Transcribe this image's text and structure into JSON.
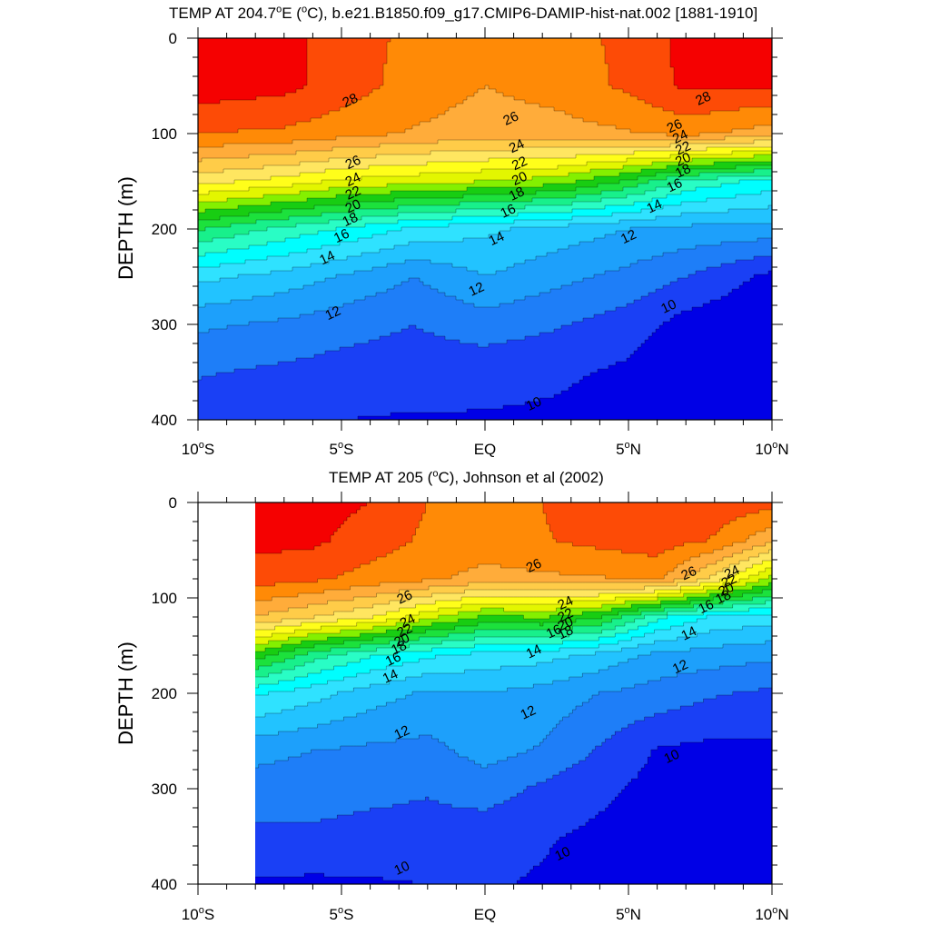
{
  "chart_data": [
    {
      "type": "contour",
      "title_parts": [
        "TEMP AT 204.7",
        "o",
        "E (",
        "o",
        "C), b.e21.B1850.f09_g17.CMIP6-DAMIP-hist-nat.002 [1881-1910]"
      ],
      "ylabel": "DEPTH (m)",
      "xlim": [
        -10,
        10
      ],
      "ylim": [
        0,
        400
      ],
      "y_inverted": true,
      "y_ticks": [
        0,
        100,
        200,
        300,
        400
      ],
      "y_tick_labels": [
        "0",
        "100",
        "200",
        "300",
        "400"
      ],
      "x_ticks": [
        -10,
        -5,
        0,
        5,
        10
      ],
      "x_tick_labels": [
        {
          "main": "10",
          "sup": "o",
          "tail": "S"
        },
        {
          "main": "5",
          "sup": "o",
          "tail": "S"
        },
        {
          "main": "EQ",
          "sup": "",
          "tail": ""
        },
        {
          "main": "5",
          "sup": "o",
          "tail": "N"
        },
        {
          "main": "10",
          "sup": "o",
          "tail": "N"
        }
      ],
      "data_xlim": [
        -10,
        10
      ],
      "contour_labels": [
        {
          "text": "28",
          "x": -4.7,
          "y": 65
        },
        {
          "text": "28",
          "x": 7.6,
          "y": 63
        },
        {
          "text": "26",
          "x": -4.6,
          "y": 130
        },
        {
          "text": "26",
          "x": 0.9,
          "y": 84
        },
        {
          "text": "26",
          "x": 6.6,
          "y": 92
        },
        {
          "text": "24",
          "x": -4.6,
          "y": 148
        },
        {
          "text": "24",
          "x": 1.1,
          "y": 113
        },
        {
          "text": "24",
          "x": 6.8,
          "y": 103
        },
        {
          "text": "22",
          "x": -4.6,
          "y": 162
        },
        {
          "text": "22",
          "x": 1.2,
          "y": 131
        },
        {
          "text": "22",
          "x": 6.9,
          "y": 115
        },
        {
          "text": "20",
          "x": -4.6,
          "y": 176
        },
        {
          "text": "20",
          "x": 1.2,
          "y": 147
        },
        {
          "text": "20",
          "x": 6.9,
          "y": 127
        },
        {
          "text": "18",
          "x": -4.7,
          "y": 190
        },
        {
          "text": "18",
          "x": 1.1,
          "y": 163
        },
        {
          "text": "18",
          "x": 6.9,
          "y": 139
        },
        {
          "text": "16",
          "x": -5.0,
          "y": 207
        },
        {
          "text": "16",
          "x": 0.8,
          "y": 181
        },
        {
          "text": "16",
          "x": 6.6,
          "y": 154
        },
        {
          "text": "14",
          "x": -5.5,
          "y": 230
        },
        {
          "text": "14",
          "x": 0.4,
          "y": 210
        },
        {
          "text": "14",
          "x": 5.9,
          "y": 176
        },
        {
          "text": "12",
          "x": -5.3,
          "y": 288
        },
        {
          "text": "12",
          "x": -0.3,
          "y": 263
        },
        {
          "text": "12",
          "x": 5.0,
          "y": 208
        },
        {
          "text": "10",
          "x": 6.4,
          "y": 281
        },
        {
          "text": "10",
          "x": 1.7,
          "y": 383
        }
      ],
      "fields": {
        "x_grid": [
          -10,
          -7,
          -5,
          -2.5,
          0,
          2.5,
          5,
          7,
          10
        ],
        "depth_grid": [
          0,
          50,
          100,
          150,
          200,
          250,
          300,
          350,
          400
        ],
        "temperature": [
          [
            28.6,
            28.3,
            27.6,
            26.7,
            26.0,
            26.5,
            27.3,
            28.3,
            28.3
          ],
          [
            28.6,
            28.3,
            27.5,
            26.6,
            26.0,
            26.4,
            27.2,
            28.2,
            28.1
          ],
          [
            27.0,
            26.8,
            26.4,
            25.9,
            25.5,
            25.6,
            25.9,
            26.3,
            25.5
          ],
          [
            23.4,
            22.6,
            21.8,
            21.4,
            21.0,
            20.5,
            18.8,
            16.8,
            15.6
          ],
          [
            18.1,
            16.7,
            15.9,
            14.8,
            14.2,
            13.6,
            13.0,
            12.7,
            12.6
          ],
          [
            14.3,
            13.6,
            12.9,
            12.0,
            13.0,
            12.3,
            11.7,
            11.0,
            9.7
          ],
          [
            12.2,
            11.8,
            11.4,
            11.0,
            11.5,
            11.1,
            10.5,
            9.6,
            9.1
          ],
          [
            11.1,
            10.8,
            10.6,
            10.5,
            10.4,
            10.2,
            9.8,
            9.0,
            8.6
          ],
          [
            10.4,
            10.2,
            10.0,
            9.9,
            9.9,
            9.8,
            9.5,
            8.9,
            8.5
          ]
        ]
      }
    },
    {
      "type": "contour",
      "title_parts": [
        "TEMP AT 205 (",
        "o",
        "C), Johnson et al (2002)"
      ],
      "ylabel": "DEPTH (m)",
      "xlim": [
        -10,
        10
      ],
      "ylim": [
        0,
        400
      ],
      "y_inverted": true,
      "y_ticks": [
        0,
        100,
        200,
        300,
        400
      ],
      "y_tick_labels": [
        "0",
        "100",
        "200",
        "300",
        "400"
      ],
      "x_ticks": [
        -10,
        -5,
        0,
        5,
        10
      ],
      "x_tick_labels": [
        {
          "main": "10",
          "sup": "o",
          "tail": "S"
        },
        {
          "main": "5",
          "sup": "o",
          "tail": "S"
        },
        {
          "main": "EQ",
          "sup": "",
          "tail": ""
        },
        {
          "main": "5",
          "sup": "o",
          "tail": "N"
        },
        {
          "main": "10",
          "sup": "o",
          "tail": "N"
        }
      ],
      "data_xlim": [
        -8,
        10
      ],
      "contour_labels": [
        {
          "text": "26",
          "x": -2.8,
          "y": 99
        },
        {
          "text": "26",
          "x": 1.7,
          "y": 66
        },
        {
          "text": "26",
          "x": 7.1,
          "y": 74
        },
        {
          "text": "24",
          "x": -2.7,
          "y": 124
        },
        {
          "text": "24",
          "x": 2.8,
          "y": 105
        },
        {
          "text": "24",
          "x": 8.6,
          "y": 73
        },
        {
          "text": "22",
          "x": -2.8,
          "y": 134
        },
        {
          "text": "22",
          "x": 2.8,
          "y": 118
        },
        {
          "text": "22",
          "x": 8.5,
          "y": 82
        },
        {
          "text": "20",
          "x": -2.9,
          "y": 144
        },
        {
          "text": "20",
          "x": 2.8,
          "y": 127
        },
        {
          "text": "20",
          "x": 8.4,
          "y": 91
        },
        {
          "text": "18",
          "x": -3.0,
          "y": 152
        },
        {
          "text": "18",
          "x": 2.8,
          "y": 136
        },
        {
          "text": "18",
          "x": 8.3,
          "y": 99
        },
        {
          "text": "16",
          "x": -3.2,
          "y": 164
        },
        {
          "text": "16",
          "x": 2.4,
          "y": 135
        },
        {
          "text": "16",
          "x": 7.7,
          "y": 109
        },
        {
          "text": "14",
          "x": -3.3,
          "y": 182
        },
        {
          "text": "14",
          "x": 1.7,
          "y": 156
        },
        {
          "text": "14",
          "x": 7.1,
          "y": 137
        },
        {
          "text": "12",
          "x": -2.9,
          "y": 241
        },
        {
          "text": "12",
          "x": 1.5,
          "y": 220
        },
        {
          "text": "12",
          "x": 6.8,
          "y": 172
        },
        {
          "text": "10",
          "x": -2.9,
          "y": 383
        },
        {
          "text": "10",
          "x": 2.7,
          "y": 368
        },
        {
          "text": "10",
          "x": 6.5,
          "y": 266
        }
      ],
      "fields": {
        "x_grid": [
          -8,
          -6,
          -4,
          -2,
          0,
          2,
          4,
          6,
          8,
          10
        ],
        "depth_grid": [
          0,
          40,
          80,
          120,
          160,
          200,
          260,
          300,
          350,
          400
        ],
        "temperature": [
          [
            28.4,
            28.4,
            28.0,
            27.0,
            27.0,
            27.0,
            27.9,
            27.9,
            27.6,
            27.4
          ],
          [
            28.3,
            28.2,
            27.5,
            26.8,
            26.6,
            26.9,
            27.3,
            27.5,
            26.9,
            25.2
          ],
          [
            27.5,
            27.2,
            26.6,
            26.2,
            25.6,
            25.8,
            25.9,
            26.3,
            23.6,
            20.7
          ],
          [
            25.0,
            24.0,
            23.1,
            21.3,
            19.8,
            20.1,
            19.1,
            16.3,
            14.8,
            14.5
          ],
          [
            19.6,
            17.5,
            16.1,
            15.2,
            14.6,
            14.4,
            13.7,
            12.7,
            12.5,
            12.2
          ],
          [
            15.2,
            14.4,
            13.5,
            12.8,
            13.0,
            12.6,
            12.0,
            11.6,
            11.1,
            10.8
          ],
          [
            12.3,
            12.0,
            11.8,
            11.7,
            12.4,
            11.9,
            10.9,
            9.9,
            9.7,
            9.8
          ],
          [
            11.6,
            11.5,
            11.3,
            11.1,
            11.5,
            10.8,
            10.2,
            9.7,
            9.6,
            9.6
          ],
          [
            10.7,
            10.8,
            10.6,
            10.6,
            10.4,
            10.1,
            9.8,
            9.6,
            9.4,
            9.3
          ],
          [
            9.9,
            9.8,
            9.9,
            10.0,
            10.1,
            9.9,
            9.6,
            9.3,
            9.1,
            8.9
          ]
        ]
      }
    }
  ],
  "colors": {
    "levels": [
      10,
      11,
      12,
      13,
      14,
      15,
      16,
      17,
      18,
      19,
      20,
      21,
      22,
      23,
      24,
      25,
      26,
      27,
      28
    ],
    "fills": [
      "#0000e6",
      "#1a40f5",
      "#1e7ef8",
      "#1da0fb",
      "#22c3ff",
      "#2fe2ff",
      "#00fefe",
      "#29fdc5",
      "#18f08b",
      "#1ce13c",
      "#18cd12",
      "#84f000",
      "#e3f600",
      "#fffe1a",
      "#ffe660",
      "#ffcc48",
      "#ffac3a",
      "#ff8a06",
      "#fd4b06",
      "#f50101"
    ]
  }
}
